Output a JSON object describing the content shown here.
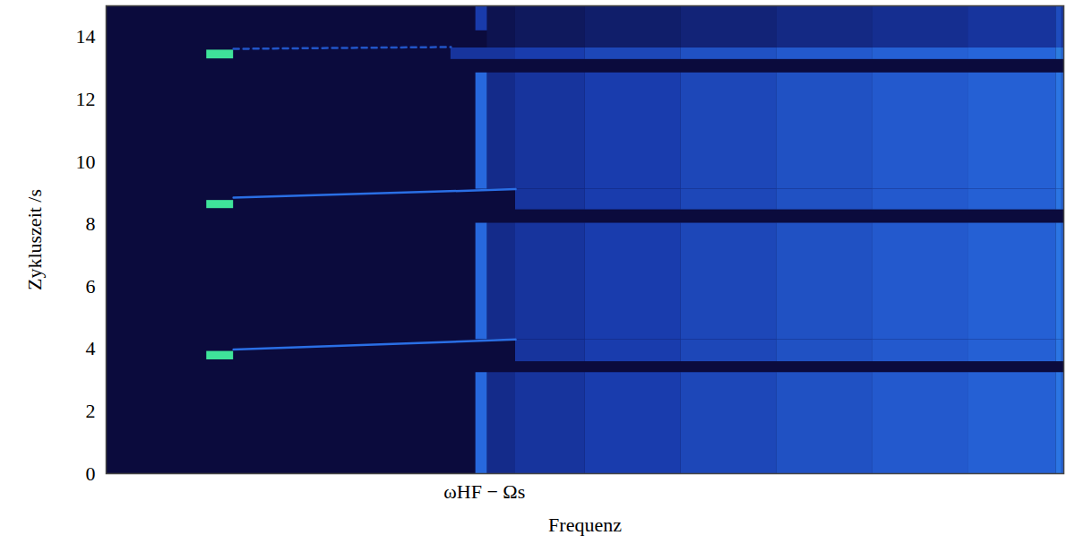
{
  "chart_data": {
    "type": "heatmap",
    "x_label": "Frequenz",
    "y_label": "Zykluszeit /s",
    "xlim": [
      0,
      100
    ],
    "ylim": [
      0,
      15
    ],
    "xticks": [
      {
        "value": 39.5,
        "label": "ωHF − Ωs"
      }
    ],
    "yticks": [
      0,
      2,
      4,
      6,
      8,
      10,
      12,
      14
    ],
    "zlim": [
      0,
      1
    ],
    "colors": [
      "#0b0b3d",
      "#1838a8",
      "#2a70e6",
      "#3fe39a"
    ],
    "cells": [
      {
        "x1": 0,
        "x2": 100,
        "y1": 0,
        "y2": 15,
        "value": 0
      },
      {
        "x1": 39.8,
        "x2": 42.75,
        "y1": 0,
        "y2": 3.24,
        "value": 0.24
      },
      {
        "x1": 42.75,
        "x2": 50,
        "y1": 0,
        "y2": 3.24,
        "value": 0.3
      },
      {
        "x1": 50,
        "x2": 60,
        "y1": 0,
        "y2": 3.24,
        "value": 0.36
      },
      {
        "x1": 60,
        "x2": 70,
        "y1": 0,
        "y2": 3.24,
        "value": 0.42
      },
      {
        "x1": 70,
        "x2": 80,
        "y1": 0,
        "y2": 3.24,
        "value": 0.48
      },
      {
        "x1": 80,
        "x2": 90,
        "y1": 0,
        "y2": 3.24,
        "value": 0.53
      },
      {
        "x1": 90,
        "x2": 99.2,
        "y1": 0,
        "y2": 3.24,
        "value": 0.57
      },
      {
        "x1": 99.2,
        "x2": 99.8,
        "y1": 0,
        "y2": 3.24,
        "value": 0.68
      },
      {
        "x1": 99.8,
        "x2": 100,
        "y1": 0,
        "y2": 3.24,
        "value": 0.57
      },
      {
        "x1": 38.6,
        "x2": 39.8,
        "y1": 0,
        "y2": 3.24,
        "value": 0.62
      },
      {
        "x1": 42.75,
        "x2": 50,
        "y1": 3.59,
        "y2": 4.3,
        "value": 0.3
      },
      {
        "x1": 50,
        "x2": 60,
        "y1": 3.59,
        "y2": 4.3,
        "value": 0.36
      },
      {
        "x1": 60,
        "x2": 70,
        "y1": 3.59,
        "y2": 4.3,
        "value": 0.42
      },
      {
        "x1": 70,
        "x2": 80,
        "y1": 3.59,
        "y2": 4.3,
        "value": 0.48
      },
      {
        "x1": 80,
        "x2": 90,
        "y1": 3.59,
        "y2": 4.3,
        "value": 0.53
      },
      {
        "x1": 90,
        "x2": 99.2,
        "y1": 3.59,
        "y2": 4.3,
        "value": 0.57
      },
      {
        "x1": 99.2,
        "x2": 99.8,
        "y1": 3.59,
        "y2": 4.3,
        "value": 0.68
      },
      {
        "x1": 99.8,
        "x2": 100,
        "y1": 3.59,
        "y2": 4.3,
        "value": 0.57
      },
      {
        "x1": 39.8,
        "x2": 42.75,
        "y1": 4.3,
        "y2": 8.03,
        "value": 0.24
      },
      {
        "x1": 42.75,
        "x2": 50,
        "y1": 4.3,
        "y2": 8.03,
        "value": 0.3
      },
      {
        "x1": 50,
        "x2": 60,
        "y1": 4.3,
        "y2": 8.03,
        "value": 0.36
      },
      {
        "x1": 60,
        "x2": 70,
        "y1": 4.3,
        "y2": 8.03,
        "value": 0.42
      },
      {
        "x1": 70,
        "x2": 80,
        "y1": 4.3,
        "y2": 8.03,
        "value": 0.48
      },
      {
        "x1": 80,
        "x2": 90,
        "y1": 4.3,
        "y2": 8.03,
        "value": 0.53
      },
      {
        "x1": 90,
        "x2": 99.2,
        "y1": 4.3,
        "y2": 8.03,
        "value": 0.57
      },
      {
        "x1": 99.2,
        "x2": 99.8,
        "y1": 4.3,
        "y2": 8.03,
        "value": 0.68
      },
      {
        "x1": 99.8,
        "x2": 100,
        "y1": 4.3,
        "y2": 8.03,
        "value": 0.57
      },
      {
        "x1": 38.6,
        "x2": 39.8,
        "y1": 4.3,
        "y2": 8.03,
        "value": 0.62
      },
      {
        "x1": 42.75,
        "x2": 50,
        "y1": 8.46,
        "y2": 9.12,
        "value": 0.3
      },
      {
        "x1": 50,
        "x2": 60,
        "y1": 8.46,
        "y2": 9.12,
        "value": 0.36
      },
      {
        "x1": 60,
        "x2": 70,
        "y1": 8.46,
        "y2": 9.12,
        "value": 0.42
      },
      {
        "x1": 70,
        "x2": 80,
        "y1": 8.46,
        "y2": 9.12,
        "value": 0.48
      },
      {
        "x1": 80,
        "x2": 90,
        "y1": 8.46,
        "y2": 9.12,
        "value": 0.53
      },
      {
        "x1": 90,
        "x2": 99.2,
        "y1": 8.46,
        "y2": 9.12,
        "value": 0.57
      },
      {
        "x1": 99.2,
        "x2": 99.8,
        "y1": 8.46,
        "y2": 9.12,
        "value": 0.68
      },
      {
        "x1": 99.8,
        "x2": 100,
        "y1": 8.46,
        "y2": 9.12,
        "value": 0.57
      },
      {
        "x1": 39.8,
        "x2": 42.75,
        "y1": 9.12,
        "y2": 12.85,
        "value": 0.24
      },
      {
        "x1": 42.75,
        "x2": 50,
        "y1": 9.12,
        "y2": 12.85,
        "value": 0.3
      },
      {
        "x1": 50,
        "x2": 60,
        "y1": 9.12,
        "y2": 12.85,
        "value": 0.36
      },
      {
        "x1": 60,
        "x2": 70,
        "y1": 9.12,
        "y2": 12.85,
        "value": 0.42
      },
      {
        "x1": 70,
        "x2": 80,
        "y1": 9.12,
        "y2": 12.85,
        "value": 0.48
      },
      {
        "x1": 80,
        "x2": 90,
        "y1": 9.12,
        "y2": 12.85,
        "value": 0.53
      },
      {
        "x1": 90,
        "x2": 99.2,
        "y1": 9.12,
        "y2": 12.85,
        "value": 0.57
      },
      {
        "x1": 99.2,
        "x2": 99.8,
        "y1": 9.12,
        "y2": 12.85,
        "value": 0.68
      },
      {
        "x1": 99.8,
        "x2": 100,
        "y1": 9.12,
        "y2": 12.85,
        "value": 0.57
      },
      {
        "x1": 38.6,
        "x2": 39.8,
        "y1": 9.12,
        "y2": 12.85,
        "value": 0.62
      },
      {
        "x1": 36,
        "x2": 42.75,
        "y1": 13.28,
        "y2": 13.65,
        "value": 0.3
      },
      {
        "x1": 42.75,
        "x2": 50,
        "y1": 13.28,
        "y2": 13.65,
        "value": 0.36
      },
      {
        "x1": 50,
        "x2": 60,
        "y1": 13.28,
        "y2": 13.65,
        "value": 0.42
      },
      {
        "x1": 60,
        "x2": 70,
        "y1": 13.28,
        "y2": 13.65,
        "value": 0.48
      },
      {
        "x1": 70,
        "x2": 80,
        "y1": 13.28,
        "y2": 13.65,
        "value": 0.53
      },
      {
        "x1": 80,
        "x2": 90,
        "y1": 13.28,
        "y2": 13.65,
        "value": 0.57
      },
      {
        "x1": 90,
        "x2": 99.2,
        "y1": 13.28,
        "y2": 13.65,
        "value": 0.6
      },
      {
        "x1": 99.2,
        "x2": 99.8,
        "y1": 13.28,
        "y2": 13.65,
        "value": 0.7
      },
      {
        "x1": 99.8,
        "x2": 100,
        "y1": 13.28,
        "y2": 13.65,
        "value": 0.6
      },
      {
        "x1": 39.8,
        "x2": 42.75,
        "y1": 13.65,
        "y2": 15,
        "value": 0.06
      },
      {
        "x1": 42.75,
        "x2": 50,
        "y1": 13.65,
        "y2": 15,
        "value": 0.1
      },
      {
        "x1": 50,
        "x2": 60,
        "y1": 13.65,
        "y2": 15,
        "value": 0.14
      },
      {
        "x1": 60,
        "x2": 70,
        "y1": 13.65,
        "y2": 15,
        "value": 0.18
      },
      {
        "x1": 70,
        "x2": 80,
        "y1": 13.65,
        "y2": 15,
        "value": 0.22
      },
      {
        "x1": 80,
        "x2": 90,
        "y1": 13.65,
        "y2": 15,
        "value": 0.26
      },
      {
        "x1": 90,
        "x2": 99.2,
        "y1": 13.65,
        "y2": 15,
        "value": 0.3
      },
      {
        "x1": 99.2,
        "x2": 99.8,
        "y1": 13.65,
        "y2": 15,
        "value": 0.45
      },
      {
        "x1": 99.8,
        "x2": 100,
        "y1": 13.65,
        "y2": 15,
        "value": 0.3
      },
      {
        "x1": 38.6,
        "x2": 39.8,
        "y1": 14.2,
        "y2": 15,
        "value": 0.35
      },
      {
        "x1": 10.5,
        "x2": 13.3,
        "y1": 3.65,
        "y2": 3.92,
        "value": 1
      },
      {
        "x1": 10.5,
        "x2": 13.3,
        "y1": 8.5,
        "y2": 8.76,
        "value": 1
      },
      {
        "x1": 10.5,
        "x2": 13.3,
        "y1": 13.3,
        "y2": 13.58,
        "value": 1
      }
    ],
    "lines": [
      {
        "x": [
          13.3,
          42.75
        ],
        "y": [
          3.98,
          4.3
        ],
        "value": 0.66,
        "line_style": "solid"
      },
      {
        "x": [
          13.3,
          42.75
        ],
        "y": [
          8.85,
          9.12
        ],
        "value": 0.66,
        "line_style": "solid"
      },
      {
        "x": [
          13.3,
          36
        ],
        "y": [
          13.62,
          13.68
        ],
        "value": 0.5,
        "line_style": "dashed"
      }
    ]
  }
}
